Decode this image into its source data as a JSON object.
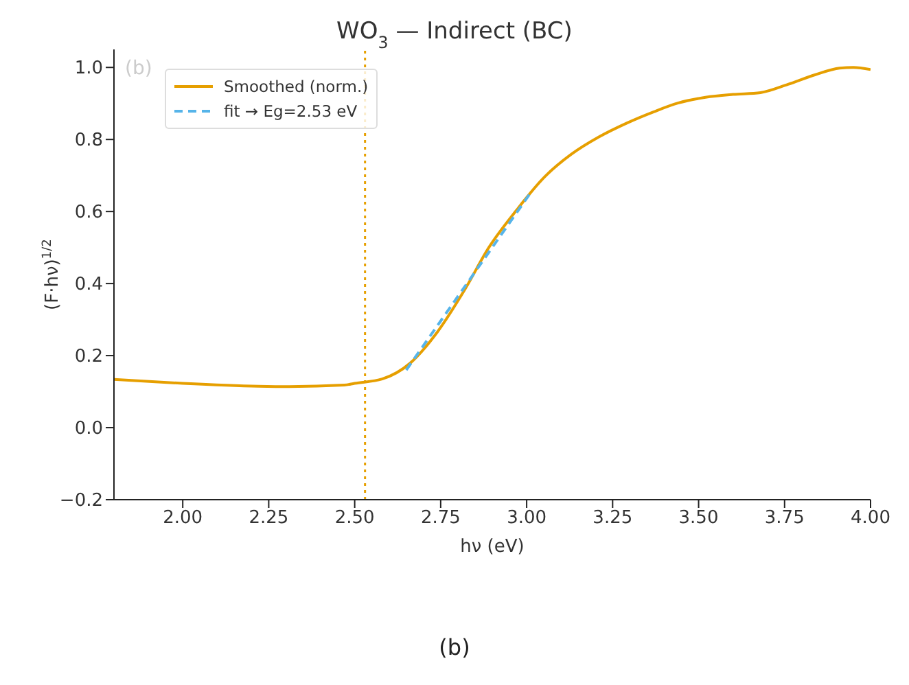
{
  "chart_data": {
    "type": "line",
    "title": "WO$_{3}$ — Indirect (BC)",
    "xlabel": "hν (eV)",
    "ylabel": "(F·hν)$^{1/2}$",
    "annotations": [
      "(b)",
      "(b)"
    ],
    "xlim": [
      1.8,
      4.0
    ],
    "ylim": [
      -0.2,
      1.05
    ],
    "xticks": [
      {
        "value": 2,
        "label": "2.00"
      },
      2.25,
      {
        "value": 2.5,
        "label": "2.50"
      },
      2.75,
      {
        "value": 3,
        "label": "3.00"
      },
      3.25,
      {
        "value": 3.5,
        "label": "3.50"
      },
      3.75,
      {
        "value": 4,
        "label": "4.00"
      }
    ],
    "yticks": [
      {
        "value": -0.2,
        "label": "−0.2"
      },
      {
        "value": 0,
        "label": "0.0"
      },
      0.2,
      0.4,
      0.6,
      0.8,
      {
        "value": 1,
        "label": "1.0"
      }
    ],
    "legend": "top left",
    "marker": "none",
    "ref_lines": [
      {
        "axis": "x",
        "value": 2.53,
        "color": "#e69f00",
        "line_style": "dotted"
      }
    ],
    "series": [
      {
        "name": "Smoothed (norm.)",
        "color": "#e69f00",
        "line_style": "solid",
        "x": [
          1.8,
          2.0,
          2.22,
          2.31,
          2.47,
          2.5,
          2.58,
          2.66,
          2.74,
          2.82,
          2.89,
          2.97,
          3.05,
          3.13,
          3.21,
          3.29,
          3.37,
          3.44,
          3.52,
          3.6,
          3.68,
          3.76,
          3.84,
          3.91,
          3.95,
          4.0
        ],
        "values": [
          0.134,
          0.123,
          0.115,
          0.114,
          0.118,
          0.123,
          0.135,
          0.178,
          0.265,
          0.383,
          0.5,
          0.603,
          0.694,
          0.759,
          0.807,
          0.845,
          0.877,
          0.901,
          0.917,
          0.925,
          0.93,
          0.953,
          0.98,
          0.998,
          1.0,
          0.994
        ]
      },
      {
        "name": "fit → Eg=2.53 eV",
        "color": "#56b4e9",
        "line_style": "dashed",
        "x": [
          2.65,
          3.01
        ],
        "values": [
          0.16,
          0.65
        ]
      }
    ]
  }
}
